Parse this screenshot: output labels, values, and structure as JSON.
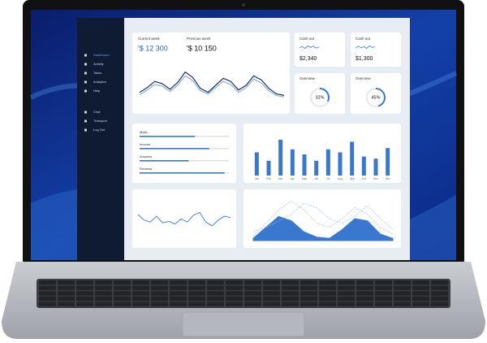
{
  "sidebar": {
    "items": [
      "Dashboard",
      "Activity",
      "Tasks",
      "Analytics",
      "Help",
      "Chat",
      "Transport",
      "Log Out"
    ]
  },
  "week_card": {
    "current_label": "Current week",
    "current_value": "'$ 12 300",
    "previous_label": "Previous week",
    "previous_value": "'$ 10 150",
    "chart": {
      "type": "line",
      "ylim": [
        0,
        100
      ],
      "series": [
        {
          "color": "#1f2f5a",
          "values": [
            30,
            42,
            58,
            52,
            38,
            55,
            82,
            68,
            40,
            30,
            48,
            66,
            58,
            36,
            48,
            72,
            62,
            40,
            26,
            22
          ]
        },
        {
          "color": "#7fb0e8",
          "values": [
            24,
            36,
            50,
            46,
            32,
            48,
            72,
            60,
            34,
            26,
            42,
            58,
            50,
            30,
            42,
            64,
            54,
            34,
            22,
            18
          ]
        }
      ]
    }
  },
  "cash_cards": [
    {
      "label": "Cash out",
      "value": "$2,340",
      "spark": [
        40,
        60,
        30,
        70,
        45,
        65,
        35,
        55
      ]
    },
    {
      "label": "Cash out",
      "value": "$1,300",
      "spark": [
        35,
        65,
        40,
        60,
        30,
        70,
        45,
        58
      ]
    }
  ],
  "overview_cards": [
    {
      "label": "Overview",
      "value": 32,
      "value_label": "32%"
    },
    {
      "label": "Overview",
      "value": 45,
      "value_label": "45%"
    }
  ],
  "progress_list": {
    "rows": [
      {
        "label": "Mails",
        "progress": 62
      },
      {
        "label": "Income",
        "progress": 78
      },
      {
        "label": "Answers",
        "progress": 55
      },
      {
        "label": "Reviews",
        "progress": 95
      }
    ]
  },
  "bar_chart": {
    "type": "bar",
    "categories": [
      "Jan",
      "Feb",
      "Mar",
      "Apr",
      "May",
      "Jun",
      "Jul",
      "Aug",
      "Sep",
      "Oct",
      "Nov",
      "Dec"
    ],
    "values": [
      55,
      35,
      85,
      62,
      50,
      35,
      62,
      55,
      80,
      45,
      40,
      65
    ],
    "ylim": [
      0,
      100
    ],
    "color": "#3a78d0"
  },
  "line_chart": {
    "type": "line",
    "ylim": [
      0,
      100
    ],
    "color": "#3a78d0",
    "values": [
      60,
      45,
      40,
      55,
      38,
      42,
      35,
      48,
      40,
      58,
      65,
      40,
      30,
      45,
      55,
      52
    ]
  },
  "area_chart": {
    "type": "area",
    "ylim": [
      0,
      100
    ],
    "series": [
      {
        "color": "#3a78d0",
        "values": [
          5,
          30,
          55,
          45,
          20,
          8,
          5,
          25,
          50,
          45,
          15,
          5
        ]
      },
      {
        "color": "#9dbfe6",
        "values": [
          10,
          40,
          70,
          90,
          70,
          40,
          30,
          50,
          75,
          60,
          30,
          15
        ]
      },
      {
        "color": "#9dbfe6",
        "values": [
          20,
          30,
          45,
          60,
          85,
          75,
          50,
          40,
          55,
          80,
          50,
          25
        ]
      }
    ]
  }
}
